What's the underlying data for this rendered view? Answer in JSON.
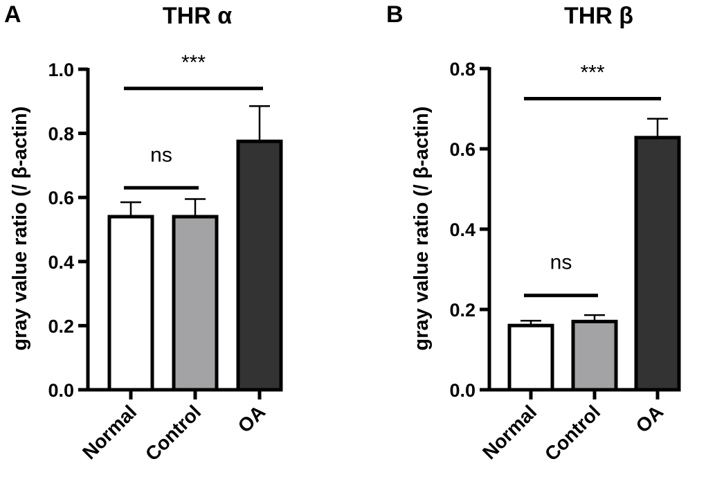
{
  "chart_data": [
    {
      "type": "bar",
      "panel": "A",
      "title": "THR α",
      "ylabel": "gray value ratio (/ β-actin)",
      "ylim": [
        0,
        1.0
      ],
      "yticks": [
        "0.0",
        "0.2",
        "0.4",
        "0.6",
        "0.8",
        "1.0"
      ],
      "categories": [
        "Normal",
        "Control",
        "OA"
      ],
      "values": [
        0.54,
        0.54,
        0.775
      ],
      "errors": [
        0.045,
        0.055,
        0.11
      ],
      "colors": [
        "#ffffff",
        "#a3a3a6",
        "#333333"
      ],
      "grid": false,
      "comparisons": [
        {
          "from": "Normal",
          "to": "Control",
          "label": "ns",
          "y": 0.63
        },
        {
          "from": "Normal",
          "to": "OA",
          "label": "***",
          "y": 0.94
        }
      ]
    },
    {
      "type": "bar",
      "panel": "B",
      "title": "THR β",
      "ylabel": "gray value ratio (/ β-actin)",
      "ylim": [
        0,
        0.8
      ],
      "yticks": [
        "0.0",
        "0.2",
        "0.4",
        "0.6",
        "0.8"
      ],
      "categories": [
        "Normal",
        "Control",
        "OA"
      ],
      "values": [
        0.16,
        0.17,
        0.628
      ],
      "errors": [
        0.012,
        0.016,
        0.047
      ],
      "colors": [
        "#ffffff",
        "#a3a3a6",
        "#333333"
      ],
      "grid": false,
      "comparisons": [
        {
          "from": "Normal",
          "to": "Control",
          "label": "ns",
          "y": 0.235
        },
        {
          "from": "Normal",
          "to": "OA",
          "label": "***",
          "y": 0.725
        }
      ]
    }
  ]
}
